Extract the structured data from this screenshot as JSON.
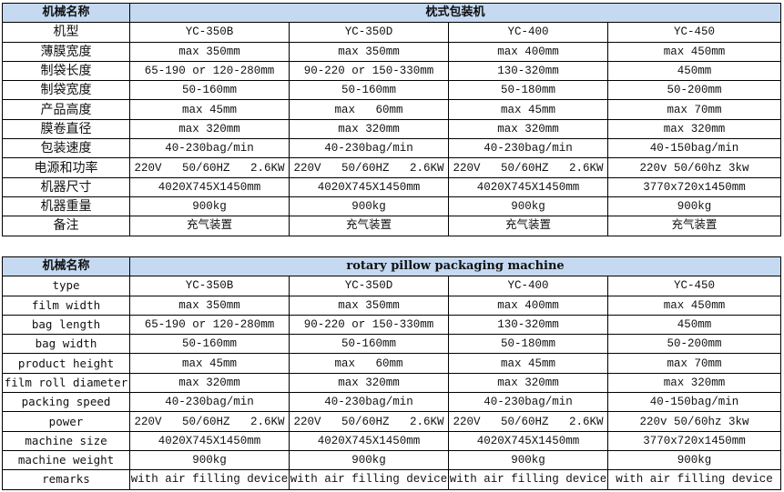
{
  "colors": {
    "header_bg": "#c5d9f1"
  },
  "tables": [
    {
      "header": {
        "label": "机械名称",
        "title": "枕式包装机"
      },
      "rows": [
        {
          "label": "机型",
          "values": [
            "YC-350B",
            "YC-350D",
            "YC-400",
            "YC-450"
          ]
        },
        {
          "label": "薄膜宽度",
          "values": [
            "max 350mm",
            "max 350mm",
            "max 400mm",
            "max 450mm"
          ]
        },
        {
          "label": "制袋长度",
          "values": [
            "65-190 or 120-280mm",
            "90-220 or 150-330mm",
            "130-320mm",
            "450mm"
          ]
        },
        {
          "label": "制袋宽度",
          "values": [
            "50-160mm",
            "50-160mm",
            "50-180mm",
            "50-200mm"
          ]
        },
        {
          "label": "产品高度",
          "values": [
            "max 45mm",
            "max   60mm",
            "max 45mm",
            "max 70mm"
          ]
        },
        {
          "label": "膜卷直径",
          "values": [
            "max 320mm",
            "max 320mm",
            "max 320mm",
            "max 320mm"
          ]
        },
        {
          "label": "包装速度",
          "values": [
            "40-230bag/min",
            "40-230bag/min",
            "40-230bag/min",
            "40-150bag/min"
          ]
        },
        {
          "label": "电源和功率",
          "values": [
            "220V   50/60HZ   2.6KW",
            "220V   50/60HZ   2.6KW",
            "220V   50/60HZ   2.6KW",
            "220v 50/60hz 3kw"
          ]
        },
        {
          "label": "机器尺寸",
          "values": [
            "4020X745X1450mm",
            "4020X745X1450mm",
            "4020X745X1450mm",
            "3770x720x1450mm"
          ]
        },
        {
          "label": "机器重量",
          "values": [
            "900kg",
            "900kg",
            "900kg",
            "900kg"
          ]
        },
        {
          "label": "备注",
          "values": [
            "充气装置",
            "充气装置",
            "充气装置",
            "充气装置"
          ]
        }
      ]
    },
    {
      "header": {
        "label": "机械名称",
        "title": "rotary pillow packaging machine"
      },
      "rows": [
        {
          "label": "type",
          "values": [
            "YC-350B",
            "YC-350D",
            "YC-400",
            "YC-450"
          ]
        },
        {
          "label": "film width",
          "values": [
            "max 350mm",
            "max 350mm",
            "max 400mm",
            "max 450mm"
          ]
        },
        {
          "label": "bag length",
          "values": [
            "65-190 or 120-280mm",
            "90-220 or 150-330mm",
            "130-320mm",
            "450mm"
          ]
        },
        {
          "label": "bag width",
          "values": [
            "50-160mm",
            "50-160mm",
            "50-180mm",
            "50-200mm"
          ]
        },
        {
          "label": "product height",
          "values": [
            "max 45mm",
            "max   60mm",
            "max 45mm",
            "max 70mm"
          ]
        },
        {
          "label": "film roll diameter",
          "values": [
            "max 320mm",
            "max 320mm",
            "max 320mm",
            "max 320mm"
          ]
        },
        {
          "label": "packing speed",
          "values": [
            "40-230bag/min",
            "40-230bag/min",
            "40-230bag/min",
            "40-150bag/min"
          ]
        },
        {
          "label": "power",
          "values": [
            "220V   50/60HZ   2.6KW",
            "220V   50/60HZ   2.6KW",
            "220V   50/60HZ   2.6KW",
            "220v 50/60hz 3kw"
          ]
        },
        {
          "label": "machine size",
          "values": [
            "4020X745X1450mm",
            "4020X745X1450mm",
            "4020X745X1450mm",
            "3770x720x1450mm"
          ]
        },
        {
          "label": "machine weight",
          "values": [
            "900kg",
            "900kg",
            "900kg",
            "900kg"
          ]
        },
        {
          "label": "remarks",
          "values": [
            "with air filling device",
            "with air filling device",
            "with air filling device",
            "with air filling device"
          ]
        }
      ]
    }
  ]
}
